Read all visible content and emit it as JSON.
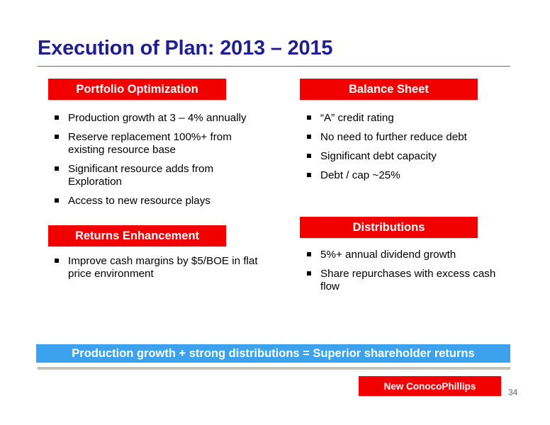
{
  "slide": {
    "title": "Execution of Plan: 2013 – 2015",
    "page_number": "34"
  },
  "sections": {
    "portfolio": {
      "header": "Portfolio Optimization",
      "bullets": [
        "Production growth at 3 – 4% annually",
        "Reserve replacement 100%+ from existing resource base",
        "Significant resource adds from Exploration",
        "Access to new resource plays"
      ]
    },
    "balance": {
      "header": "Balance Sheet",
      "bullets": [
        "“A” credit rating",
        "No need to further reduce debt",
        "Significant debt capacity",
        "Debt / cap ~25%"
      ]
    },
    "returns": {
      "header": "Returns Enhancement",
      "bullets": [
        "Improve cash margins by $5/BOE in flat price environment"
      ]
    },
    "distributions": {
      "header": "Distributions",
      "bullets": [
        "5%+ annual dividend growth",
        "Share repurchases with excess cash flow"
      ]
    }
  },
  "summary": "Production growth + strong distributions = Superior shareholder returns",
  "brand": "New ConocoPhillips",
  "colors": {
    "title": "#1f1f8f",
    "accent_red": "#f20000",
    "summary_blue": "#3da2ee"
  }
}
